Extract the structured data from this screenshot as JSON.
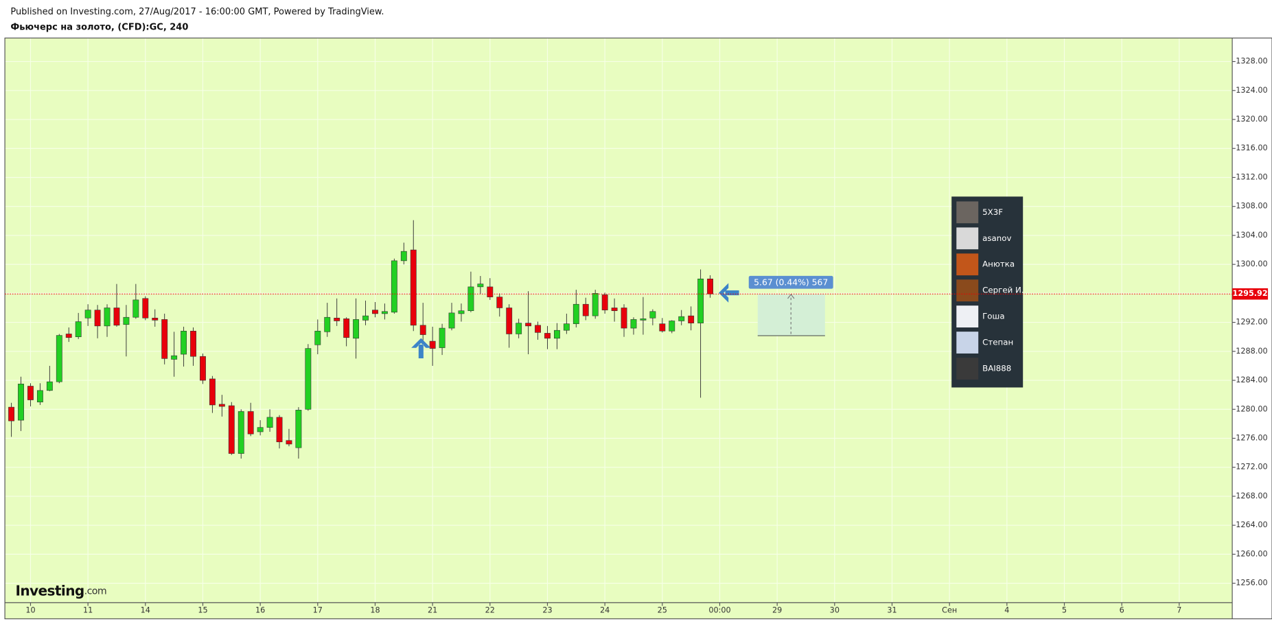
{
  "chart_data": {
    "type": "candlestick",
    "published": "Published on Investing.com, 27/Aug/2017 - 16:00:00 GMT, Powered by TradingView.",
    "title": "Фьючерс на золото, (CFD):GC, 240",
    "logo": "Investing",
    "logo_suffix": ".com",
    "measure_label": "5.67 (0.44%) 567",
    "last_price": 1295.92,
    "up_color": "#22d022",
    "down_color": "#e8000b",
    "background": "#e8fdc0",
    "grid": true,
    "x": [
      0,
      1,
      2,
      3,
      4,
      5,
      6,
      7,
      8,
      9,
      10,
      11,
      12,
      13,
      14,
      15,
      16,
      17,
      18,
      19,
      20,
      21,
      22,
      23,
      24,
      25,
      26,
      27,
      28,
      29,
      30,
      31,
      32,
      33,
      34,
      35,
      36,
      37,
      38,
      39,
      40,
      41,
      42,
      43,
      44,
      45,
      46,
      47,
      48,
      49,
      50,
      51,
      52,
      53,
      54,
      55,
      56,
      57,
      58,
      59,
      60,
      61,
      62,
      63,
      64,
      65,
      66,
      67,
      68,
      69,
      70,
      71,
      72,
      73
    ],
    "open": [
      1280.3,
      1278.5,
      1283.2,
      1281.0,
      1282.6,
      1283.8,
      1290.4,
      1290.0,
      1292.6,
      1293.7,
      1291.5,
      1294.0,
      1291.7,
      1292.7,
      1295.3,
      1292.6,
      1292.4,
      1286.9,
      1287.6,
      1290.8,
      1287.3,
      1284.2,
      1280.7,
      1280.5,
      1273.9,
      1279.7,
      1276.9,
      1277.5,
      1278.9,
      1275.7,
      1274.7,
      1280.0,
      1288.9,
      1290.7,
      1292.6,
      1292.5,
      1289.8,
      1292.3,
      1293.7,
      1293.2,
      1293.4,
      1300.5,
      1302.0,
      1291.6,
      1289.4,
      1288.5,
      1291.2,
      1293.2,
      1293.6,
      1296.9,
      1296.9,
      1295.5,
      1294.0,
      1290.4,
      1291.9,
      1291.6,
      1290.5,
      1289.8,
      1290.9,
      1291.8,
      1294.5,
      1292.9,
      1295.8,
      1294.0,
      1294.0,
      1291.2,
      1292.3,
      1292.6,
      1291.8,
      1290.8,
      1292.2,
      1292.9,
      1291.9,
      1298.0
    ],
    "high": [
      1280.9,
      1284.5,
      1283.6,
      1283.6,
      1286.0,
      1290.4,
      1291.3,
      1293.3,
      1294.5,
      1294.4,
      1294.5,
      1297.3,
      1294.4,
      1297.3,
      1295.6,
      1293.8,
      1293.2,
      1290.7,
      1291.4,
      1291.3,
      1287.7,
      1284.6,
      1282.0,
      1281.0,
      1280.0,
      1280.9,
      1278.5,
      1280.0,
      1279.2,
      1277.3,
      1280.3,
      1289.0,
      1292.4,
      1294.7,
      1295.3,
      1292.7,
      1295.3,
      1295.0,
      1294.8,
      1294.6,
      1300.8,
      1303.0,
      1306.1,
      1294.7,
      1291.4,
      1291.8,
      1294.7,
      1294.6,
      1299.0,
      1298.4,
      1298.1,
      1296.0,
      1294.5,
      1292.5,
      1296.3,
      1292.1,
      1291.5,
      1291.9,
      1293.2,
      1296.5,
      1295.4,
      1296.5,
      1296.1,
      1295.3,
      1294.5,
      1292.7,
      1295.5,
      1293.8,
      1292.6,
      1292.3,
      1293.7,
      1294.2,
      1299.3,
      1298.5
    ],
    "low": [
      1276.2,
      1277.0,
      1280.4,
      1280.6,
      1282.5,
      1283.6,
      1289.3,
      1289.7,
      1291.5,
      1289.8,
      1290.0,
      1291.4,
      1287.3,
      1292.5,
      1292.3,
      1291.4,
      1286.2,
      1284.5,
      1285.9,
      1286.0,
      1283.5,
      1279.5,
      1279.0,
      1273.7,
      1273.2,
      1276.3,
      1276.4,
      1276.9,
      1274.6,
      1274.9,
      1273.2,
      1279.8,
      1287.6,
      1290.0,
      1291.5,
      1288.7,
      1287.0,
      1291.6,
      1292.7,
      1292.4,
      1293.2,
      1300.0,
      1290.8,
      1289.4,
      1286.0,
      1287.5,
      1290.9,
      1292.1,
      1293.4,
      1295.9,
      1295.1,
      1292.8,
      1288.5,
      1289.8,
      1287.6,
      1289.6,
      1288.3,
      1288.3,
      1290.4,
      1291.3,
      1292.3,
      1292.5,
      1293.2,
      1292.1,
      1290.0,
      1290.3,
      1290.3,
      1291.6,
      1290.6,
      1290.5,
      1291.6,
      1290.9,
      1281.6,
      1295.4
    ],
    "close": [
      1278.4,
      1283.5,
      1281.3,
      1282.6,
      1283.8,
      1290.2,
      1289.9,
      1292.1,
      1293.7,
      1291.5,
      1294.0,
      1291.6,
      1292.7,
      1295.1,
      1292.6,
      1292.3,
      1287.0,
      1287.4,
      1290.8,
      1287.3,
      1284.0,
      1280.6,
      1280.4,
      1273.9,
      1279.7,
      1276.6,
      1277.5,
      1278.9,
      1275.5,
      1275.2,
      1279.9,
      1288.4,
      1290.8,
      1292.7,
      1292.2,
      1289.9,
      1292.4,
      1292.9,
      1293.2,
      1293.5,
      1300.5,
      1301.8,
      1291.6,
      1290.3,
      1288.4,
      1291.2,
      1293.3,
      1293.6,
      1296.9,
      1297.3,
      1295.5,
      1294.0,
      1290.4,
      1291.9,
      1291.5,
      1290.6,
      1289.8,
      1290.9,
      1291.8,
      1294.5,
      1292.9,
      1296.0,
      1293.7,
      1293.6,
      1291.2,
      1292.4,
      1292.5,
      1293.5,
      1290.8,
      1292.2,
      1292.8,
      1291.9,
      1298.0,
      1295.92
    ],
    "xlim": [
      -0.68,
      127.54
    ],
    "xticks": [
      {
        "value": 2,
        "label": "10"
      },
      {
        "value": 8,
        "label": "11"
      },
      {
        "value": 14,
        "label": "14"
      },
      {
        "value": 20,
        "label": "15"
      },
      {
        "value": 26,
        "label": "16"
      },
      {
        "value": 32,
        "label": "17"
      },
      {
        "value": 38,
        "label": "18"
      },
      {
        "value": 44,
        "label": "21"
      },
      {
        "value": 50,
        "label": "22"
      },
      {
        "value": 56,
        "label": "23"
      },
      {
        "value": 62,
        "label": "24"
      },
      {
        "value": 68,
        "label": "25"
      },
      {
        "value": 74,
        "label": "00:00"
      },
      {
        "value": 80,
        "label": "29"
      },
      {
        "value": 86,
        "label": "30"
      },
      {
        "value": 92,
        "label": "31"
      },
      {
        "value": 98,
        "label": "Сен"
      },
      {
        "value": 104,
        "label": "4"
      },
      {
        "value": 110,
        "label": "5"
      },
      {
        "value": 116,
        "label": "6"
      },
      {
        "value": 122,
        "label": "7"
      }
    ],
    "ylim": [
      1253.32,
      1331.24
    ],
    "yticks": [
      {
        "value": 1256,
        "label": "1256.00"
      },
      {
        "value": 1260,
        "label": "1260.00"
      },
      {
        "value": 1264,
        "label": "1264.00"
      },
      {
        "value": 1268,
        "label": "1268.00"
      },
      {
        "value": 1272,
        "label": "1272.00"
      },
      {
        "value": 1276,
        "label": "1276.00"
      },
      {
        "value": 1280,
        "label": "1280.00"
      },
      {
        "value": 1284,
        "label": "1284.00"
      },
      {
        "value": 1288,
        "label": "1288.00"
      },
      {
        "value": 1292,
        "label": "1292.00"
      },
      {
        "value": 1296,
        "label": "1296.00"
      },
      {
        "value": 1300,
        "label": "1300.00"
      },
      {
        "value": 1304,
        "label": "1304.00"
      },
      {
        "value": 1308,
        "label": "1308.00"
      },
      {
        "value": 1312,
        "label": "1312.00"
      },
      {
        "value": 1316,
        "label": "1316.00"
      },
      {
        "value": 1320,
        "label": "1320.00"
      },
      {
        "value": 1324,
        "label": "1324.00"
      },
      {
        "value": 1328,
        "label": "1328.00"
      }
    ],
    "users": [
      "5X3F",
      "asanov",
      "Анютка",
      "Сергей И.",
      "Гоша",
      "Степан",
      "BAI888"
    ]
  }
}
